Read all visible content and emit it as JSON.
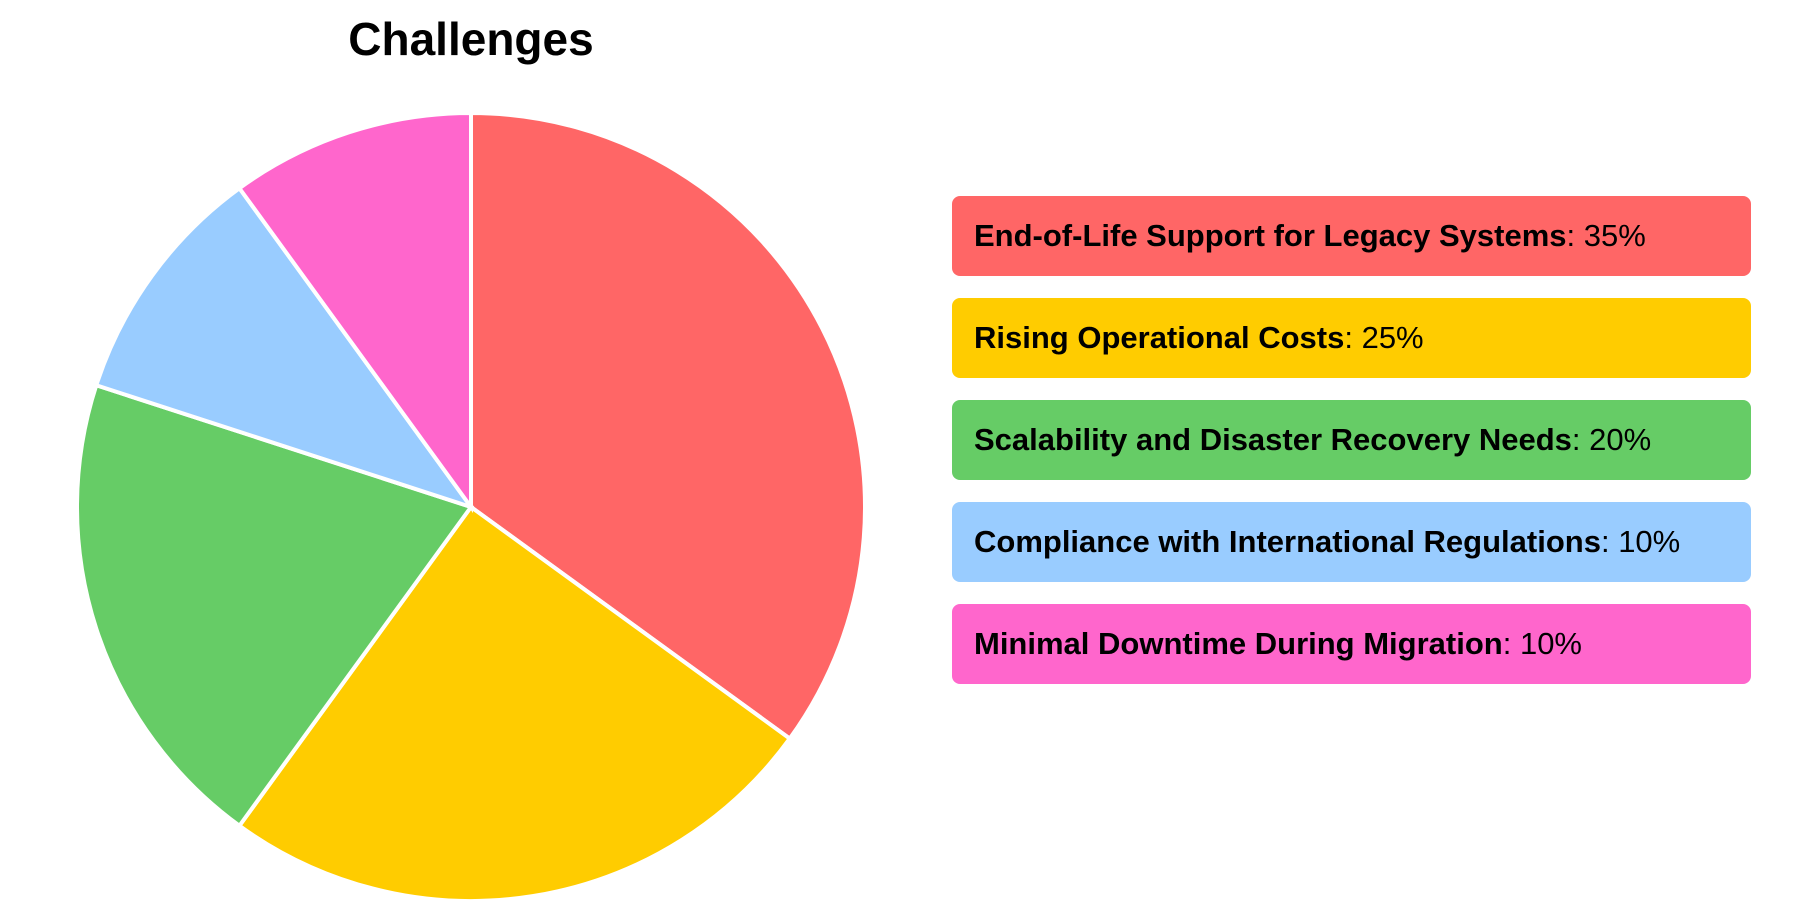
{
  "chart_data": {
    "type": "pie",
    "title": "Challenges",
    "slices": [
      {
        "label": "End-of-Life Support for Legacy Systems",
        "value": 35,
        "display": "35%",
        "color": "#FF6666"
      },
      {
        "label": "Rising Operational Costs",
        "value": 25,
        "display": "25%",
        "color": "#FFCC00"
      },
      {
        "label": "Scalability and Disaster Recovery Needs",
        "value": 20,
        "display": "20%",
        "color": "#66CC66"
      },
      {
        "label": "Compliance with International Regulations",
        "value": 10,
        "display": "10%",
        "color": "#99CCFF"
      },
      {
        "label": "Minimal Downtime During Migration",
        "value": 10,
        "display": "10%",
        "color": "#FF66CC"
      }
    ],
    "legend_position": "right"
  }
}
